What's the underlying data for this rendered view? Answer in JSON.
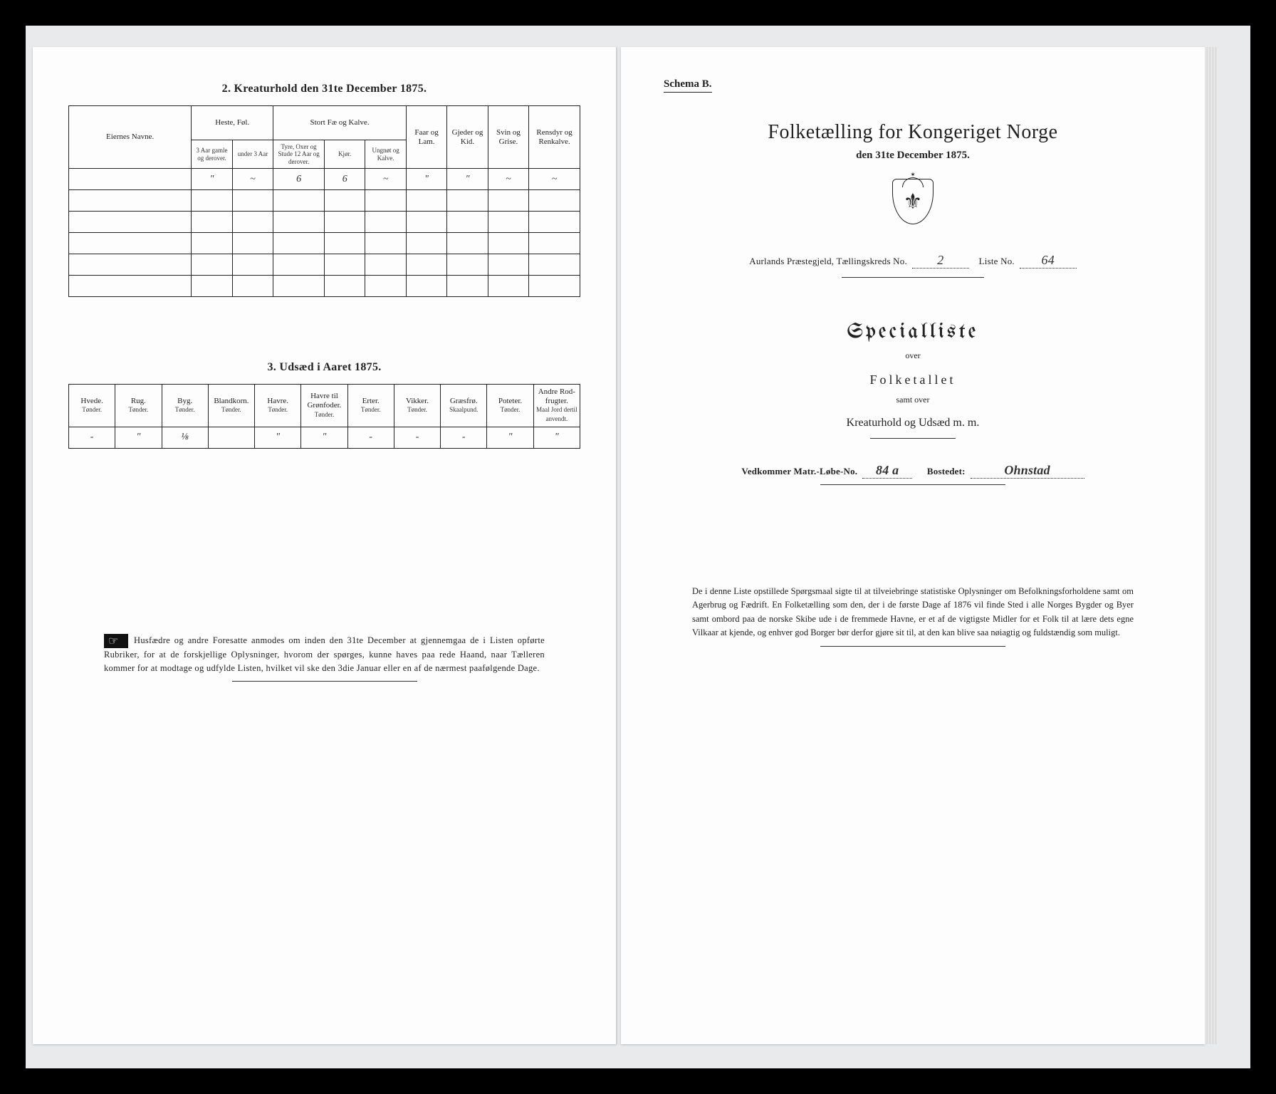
{
  "left": {
    "sec2_title": "2.  Kreaturhold den 31te December 1875.",
    "table2": {
      "owners": "Eiernes Navne.",
      "grp_heste": "Heste, Føl.",
      "grp_storfe": "Stort Fæ og Kalve.",
      "faar": "Faar og Lam.",
      "gjeder": "Gjeder og Kid.",
      "svin": "Svin og Grise.",
      "rensdyr": "Rensdyr og Renkalve.",
      "h1": "3 Aar gamle og derover.",
      "h2": "under 3 Aar",
      "s1": "Tyre, Oxer og Stude 12 Aar og derover.",
      "s2": "Kjør.",
      "s3": "Ungnøt og Kalve.",
      "row1": [
        "",
        "\"",
        "~",
        "6",
        "6",
        "~",
        "\"",
        "\"",
        "~",
        "~"
      ]
    },
    "sec3_title": "3.  Udsæd i Aaret 1875.",
    "table3": {
      "cols": [
        {
          "h": "Hvede.",
          "u": "Tønder."
        },
        {
          "h": "Rug.",
          "u": "Tønder."
        },
        {
          "h": "Byg.",
          "u": "Tønder."
        },
        {
          "h": "Blandkorn.",
          "u": "Tønder."
        },
        {
          "h": "Havre.",
          "u": "Tønder."
        },
        {
          "h": "Havre til Grønfoder.",
          "u": "Tønder."
        },
        {
          "h": "Erter.",
          "u": "Tønder."
        },
        {
          "h": "Vikker.",
          "u": "Tønder."
        },
        {
          "h": "Græsfrø.",
          "u": "Skaalpund."
        },
        {
          "h": "Poteter.",
          "u": "Tønder."
        },
        {
          "h": "Andre Rod-frugter.",
          "u": "Maal Jord dertil anvendt."
        }
      ],
      "row": [
        "-",
        "\"",
        "⅛",
        "",
        "\"",
        "\"",
        "-",
        "-",
        "-",
        "\"",
        "\""
      ]
    },
    "footer": "Husfædre og andre Foresatte anmodes om inden den 31te December at gjennemgaa de i Listen opførte Rubriker, for at de forskjellige Oplysninger, hvorom der spørges, kunne haves paa rede Haand, naar Tælleren kommer for at modtage og udfylde Listen, hvilket vil ske den 3die Januar eller en af de nærmest paafølgende Dage."
  },
  "right": {
    "schema": "Schema B.",
    "title": "Folketælling for Kongeriget Norge",
    "subtitle": "den 31te December 1875.",
    "line1a": "Aurlands Præstegjeld, Tællingskreds No.",
    "line1_val1": "2",
    "line1b": "Liste No.",
    "line1_val2": "64",
    "special": "Specialliste",
    "over": "over",
    "folketallet": "Folketallet",
    "samt": "samt over",
    "kreat": "Kreaturhold og Udsæd m. m.",
    "vedk_a": "Vedkommer Matr.-Løbe-No.",
    "vedk_val": "84 a",
    "bostedet": "Bostedet:",
    "bostedet_val": "Ohnstad",
    "footer": "De i denne Liste opstillede Spørgsmaal sigte til at tilveiebringe statistiske Oplysninger om Befolkningsforholdene samt om Agerbrug og Fædrift.  En Folketælling som den, der i de første Dage af 1876 vil finde Sted i alle Norges Bygder og Byer samt ombord paa de norske Skibe ude i de fremmede Havne, er et af de vigtigste Midler for et Folk til at lære dets egne Vilkaar at kjende, og enhver god Borger bør derfor gjøre sit til, at den kan blive saa nøiagtig og fuldstændig som muligt."
  },
  "colors": {
    "paper": "#fdfdfd",
    "ink": "#222222",
    "bg": "#000000",
    "mat": "#e8eaec"
  }
}
